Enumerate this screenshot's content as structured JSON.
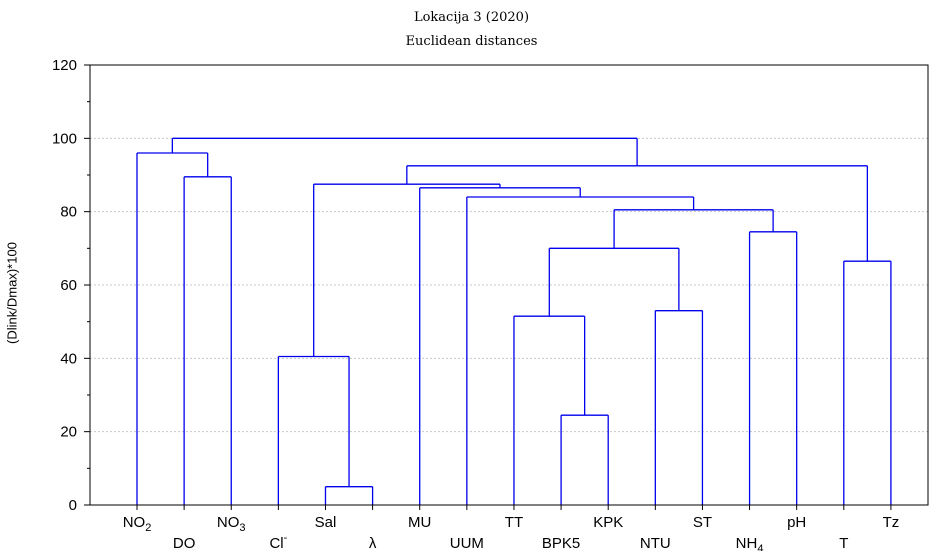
{
  "chart_data": {
    "type": "dendrogram",
    "title": "Lokacija 3 (2020)",
    "subtitle": "Euclidean distances",
    "ylabel": "(Dlink/Dmax)*100",
    "ylim": [
      0,
      120
    ],
    "yticks": [
      0,
      20,
      40,
      60,
      80,
      100,
      120
    ],
    "grid": true,
    "colors": {
      "tree": "#0000ee",
      "grid": "#c8c8c8",
      "axis": "#000000"
    },
    "leaves": [
      {
        "label": "NO",
        "sub": "2",
        "row": 1
      },
      {
        "label": "DO",
        "row": 2
      },
      {
        "label": "NO",
        "sub": "3",
        "row": 1
      },
      {
        "label": "Cl",
        "sup": "-",
        "row": 2
      },
      {
        "label": "Sal",
        "row": 1
      },
      {
        "label": "λ",
        "row": 2
      },
      {
        "label": "MU",
        "row": 1
      },
      {
        "label": "UUM",
        "row": 2
      },
      {
        "label": "TT",
        "row": 1
      },
      {
        "label": "BPK5",
        "row": 2
      },
      {
        "label": "KPK",
        "row": 1
      },
      {
        "label": "NTU",
        "row": 2
      },
      {
        "label": "ST",
        "row": 1
      },
      {
        "label": "NH",
        "sub": "4",
        "row": 2
      },
      {
        "label": "pH",
        "row": 1
      },
      {
        "label": "T",
        "row": 2
      },
      {
        "label": "Tz",
        "row": 1
      }
    ],
    "merges": [
      {
        "id": "m1",
        "left": "5",
        "right": "6",
        "height": 5
      },
      {
        "id": "m2",
        "left": "10",
        "right": "11",
        "height": 24.5
      },
      {
        "id": "m3",
        "left": "4",
        "right": "m1",
        "height": 40.5
      },
      {
        "id": "m4",
        "left": "9",
        "right": "m2",
        "height": 51.5
      },
      {
        "id": "m5",
        "left": "12",
        "right": "13",
        "height": 53
      },
      {
        "id": "m6",
        "left": "16",
        "right": "17",
        "height": 66.5
      },
      {
        "id": "m7",
        "left": "m4",
        "right": "m5",
        "height": 70
      },
      {
        "id": "m8",
        "left": "14",
        "right": "15",
        "height": 74.5
      },
      {
        "id": "m9",
        "left": "m7",
        "right": "m8",
        "height": 80.5
      },
      {
        "id": "m10",
        "left": "8",
        "right": "m9",
        "height": 84
      },
      {
        "id": "m11",
        "left": "7",
        "right": "m10",
        "height": 86.5
      },
      {
        "id": "m12",
        "left": "m3",
        "right": "m11",
        "height": 87.5
      },
      {
        "id": "m13",
        "left": "2",
        "right": "3",
        "height": 89.5
      },
      {
        "id": "m14",
        "left": "m12",
        "right": "m6",
        "height": 92.5
      },
      {
        "id": "m15",
        "left": "1",
        "right": "m13",
        "height": 96
      },
      {
        "id": "m16",
        "left": "m15",
        "right": "m14",
        "height": 100
      }
    ]
  }
}
